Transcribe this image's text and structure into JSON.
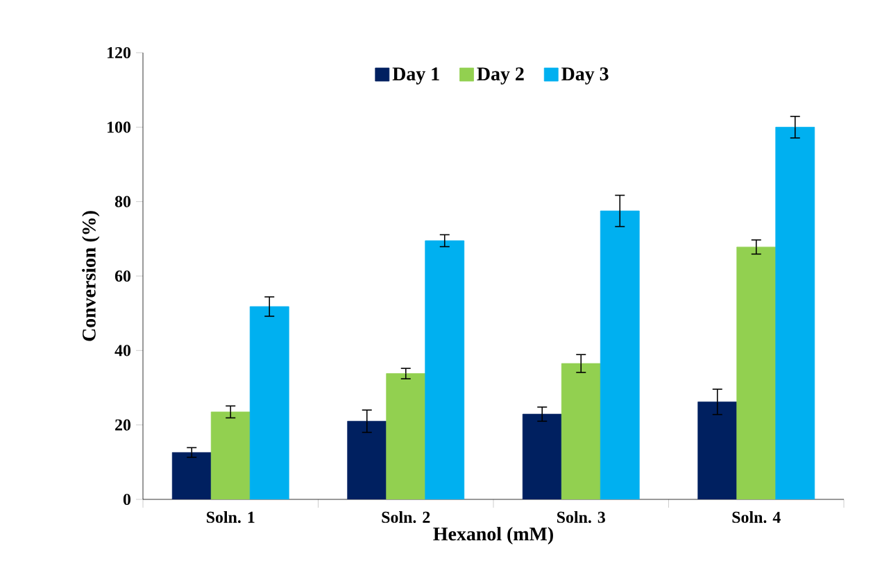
{
  "chart_data": {
    "type": "bar",
    "xlabel": "Hexanol (mM)",
    "ylabel": "Conversion (%)",
    "categories": [
      "Soln. 1",
      "Soln. 2",
      "Soln. 3",
      "Soln. 4"
    ],
    "series": [
      {
        "name": "Day 1",
        "color": "#002060",
        "values": [
          12.6,
          21,
          22.9,
          26.2
        ],
        "errors": [
          1.3,
          3,
          1.9,
          3.4
        ]
      },
      {
        "name": "Day 2",
        "color": "#92d050",
        "values": [
          23.5,
          33.8,
          36.5,
          67.8
        ],
        "errors": [
          1.6,
          1.4,
          2.4,
          1.9
        ]
      },
      {
        "name": "Day 3",
        "color": "#00b0f0",
        "values": [
          51.8,
          69.5,
          77.5,
          100
        ],
        "errors": [
          2.6,
          1.6,
          4.2,
          2.9
        ]
      }
    ],
    "ylim": [
      0,
      120
    ],
    "yticks": [
      0,
      20,
      40,
      60,
      80,
      100,
      120
    ],
    "grid": false,
    "legend": "top"
  }
}
